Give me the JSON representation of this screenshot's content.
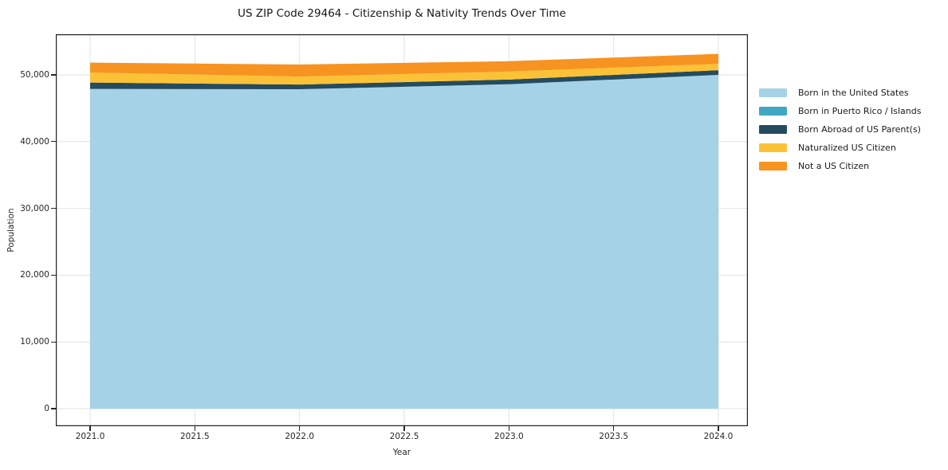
{
  "chart_data": {
    "type": "area",
    "stacked": true,
    "title": "US ZIP Code 29464 - Citizenship & Nativity Trends Over Time",
    "xlabel": "Year",
    "ylabel": "Population",
    "x": [
      2021,
      2022,
      2023,
      2024
    ],
    "series": [
      {
        "name": "Born in the United States",
        "color": "#A5D2E7",
        "values": [
          47900,
          47850,
          48600,
          50000
        ]
      },
      {
        "name": "Born in Puerto Rico / Islands",
        "color": "#3FA6C3",
        "values": [
          0,
          0,
          0,
          0
        ]
      },
      {
        "name": "Born Abroad of US Parent(s)",
        "color": "#254B5E",
        "values": [
          950,
          700,
          700,
          700
        ]
      },
      {
        "name": "Naturalized US Citizen",
        "color": "#FCC237",
        "values": [
          1500,
          1200,
          1200,
          950
        ]
      },
      {
        "name": "Not a US Citizen",
        "color": "#F79321",
        "values": [
          1480,
          1800,
          1550,
          1500
        ]
      }
    ],
    "xlim": [
      2020.836,
      2024.141
    ],
    "ylim": [
      -2625,
      56085
    ],
    "xticks": {
      "values": [
        2021.0,
        2021.5,
        2022.0,
        2022.5,
        2023.0,
        2023.5,
        2024.0
      ],
      "labels": [
        "2021.0",
        "2021.5",
        "2022.0",
        "2022.5",
        "2023.0",
        "2023.5",
        "2024.0"
      ]
    },
    "yticks": {
      "values": [
        0,
        10000,
        20000,
        30000,
        40000,
        50000
      ],
      "labels": [
        "0",
        "10,000",
        "20,000",
        "30,000",
        "40,000",
        "50,000"
      ]
    },
    "grid": true,
    "legend_position": "right",
    "colors": {
      "grid": "#e2e2e2",
      "spine": "#1f1f1f",
      "tick_text": "#262626",
      "background": "#ffffff"
    }
  }
}
